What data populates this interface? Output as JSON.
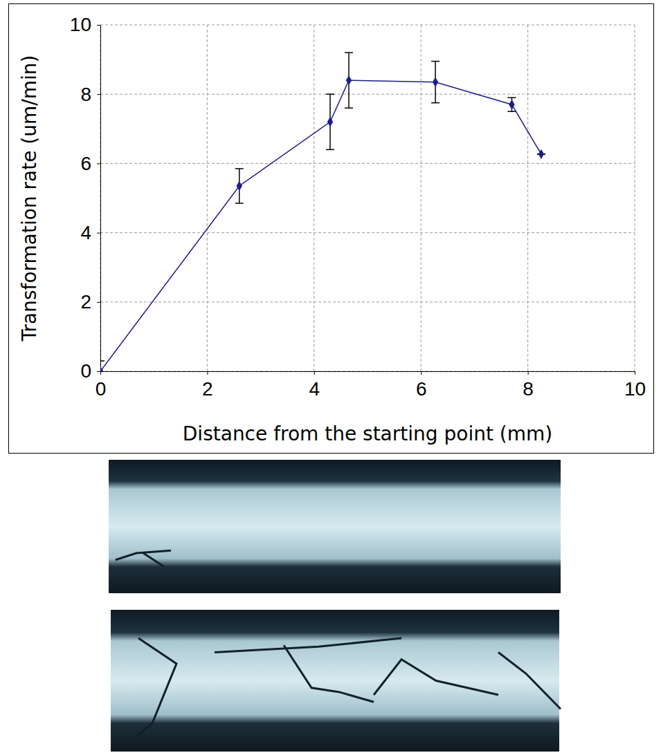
{
  "chart_data": {
    "type": "line",
    "x_label": "Distance from the starting point (mm)",
    "y_label": "Transformation rate (um/min)",
    "x": [
      0,
      2.6,
      4.3,
      4.65,
      6.27,
      7.7,
      8.25
    ],
    "values": [
      0,
      5.35,
      7.2,
      8.4,
      8.35,
      7.7,
      6.27
    ],
    "error": [
      0.3,
      0.5,
      0.8,
      0.8,
      0.6,
      0.2,
      0
    ],
    "color": "#1c1c8a",
    "marker": "diamond",
    "xlim": [
      0,
      10
    ],
    "ylim": [
      0,
      10
    ],
    "xticks": [
      0,
      2,
      4,
      6,
      8,
      10
    ],
    "yticks": [
      0,
      2,
      4,
      6,
      8,
      10
    ],
    "grid": true
  }
}
